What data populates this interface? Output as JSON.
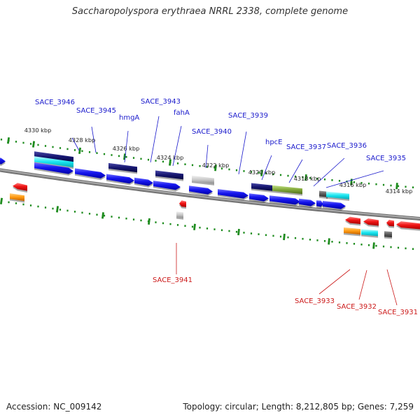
{
  "title": "Saccharopolyspora erythraea NRRL 2338, complete genome",
  "footer": {
    "accession": "Accession: NC_009142",
    "stats": "Topology: circular; Length: 8,212,805 bp; Genes: 7,259"
  },
  "colors": {
    "backbone": "#8a8a8a",
    "tick": "#1e8c1e",
    "forward_label": "#1a1acc",
    "reverse_label": "#cc1a1a"
  },
  "tick_labels": [
    "4330 kbp",
    "4328 kbp",
    "4326 kbp",
    "4324 kbp",
    "4322 kbp",
    "4320 kbp",
    "4318 kbp",
    "4316 kbp",
    "4314 kbp"
  ],
  "gene_labels_forward": [
    "SACE_3946",
    "SACE_3945",
    "hmgA",
    "SACE_3943",
    "fahA",
    "SACE_3940",
    "SACE_3939",
    "hpcE",
    "SACE_3937",
    "SACE_3936",
    "SACE_3935"
  ],
  "gene_labels_reverse": [
    "SACE_3941",
    "SACE_3933",
    "SACE_3932",
    "SACE_3931"
  ]
}
